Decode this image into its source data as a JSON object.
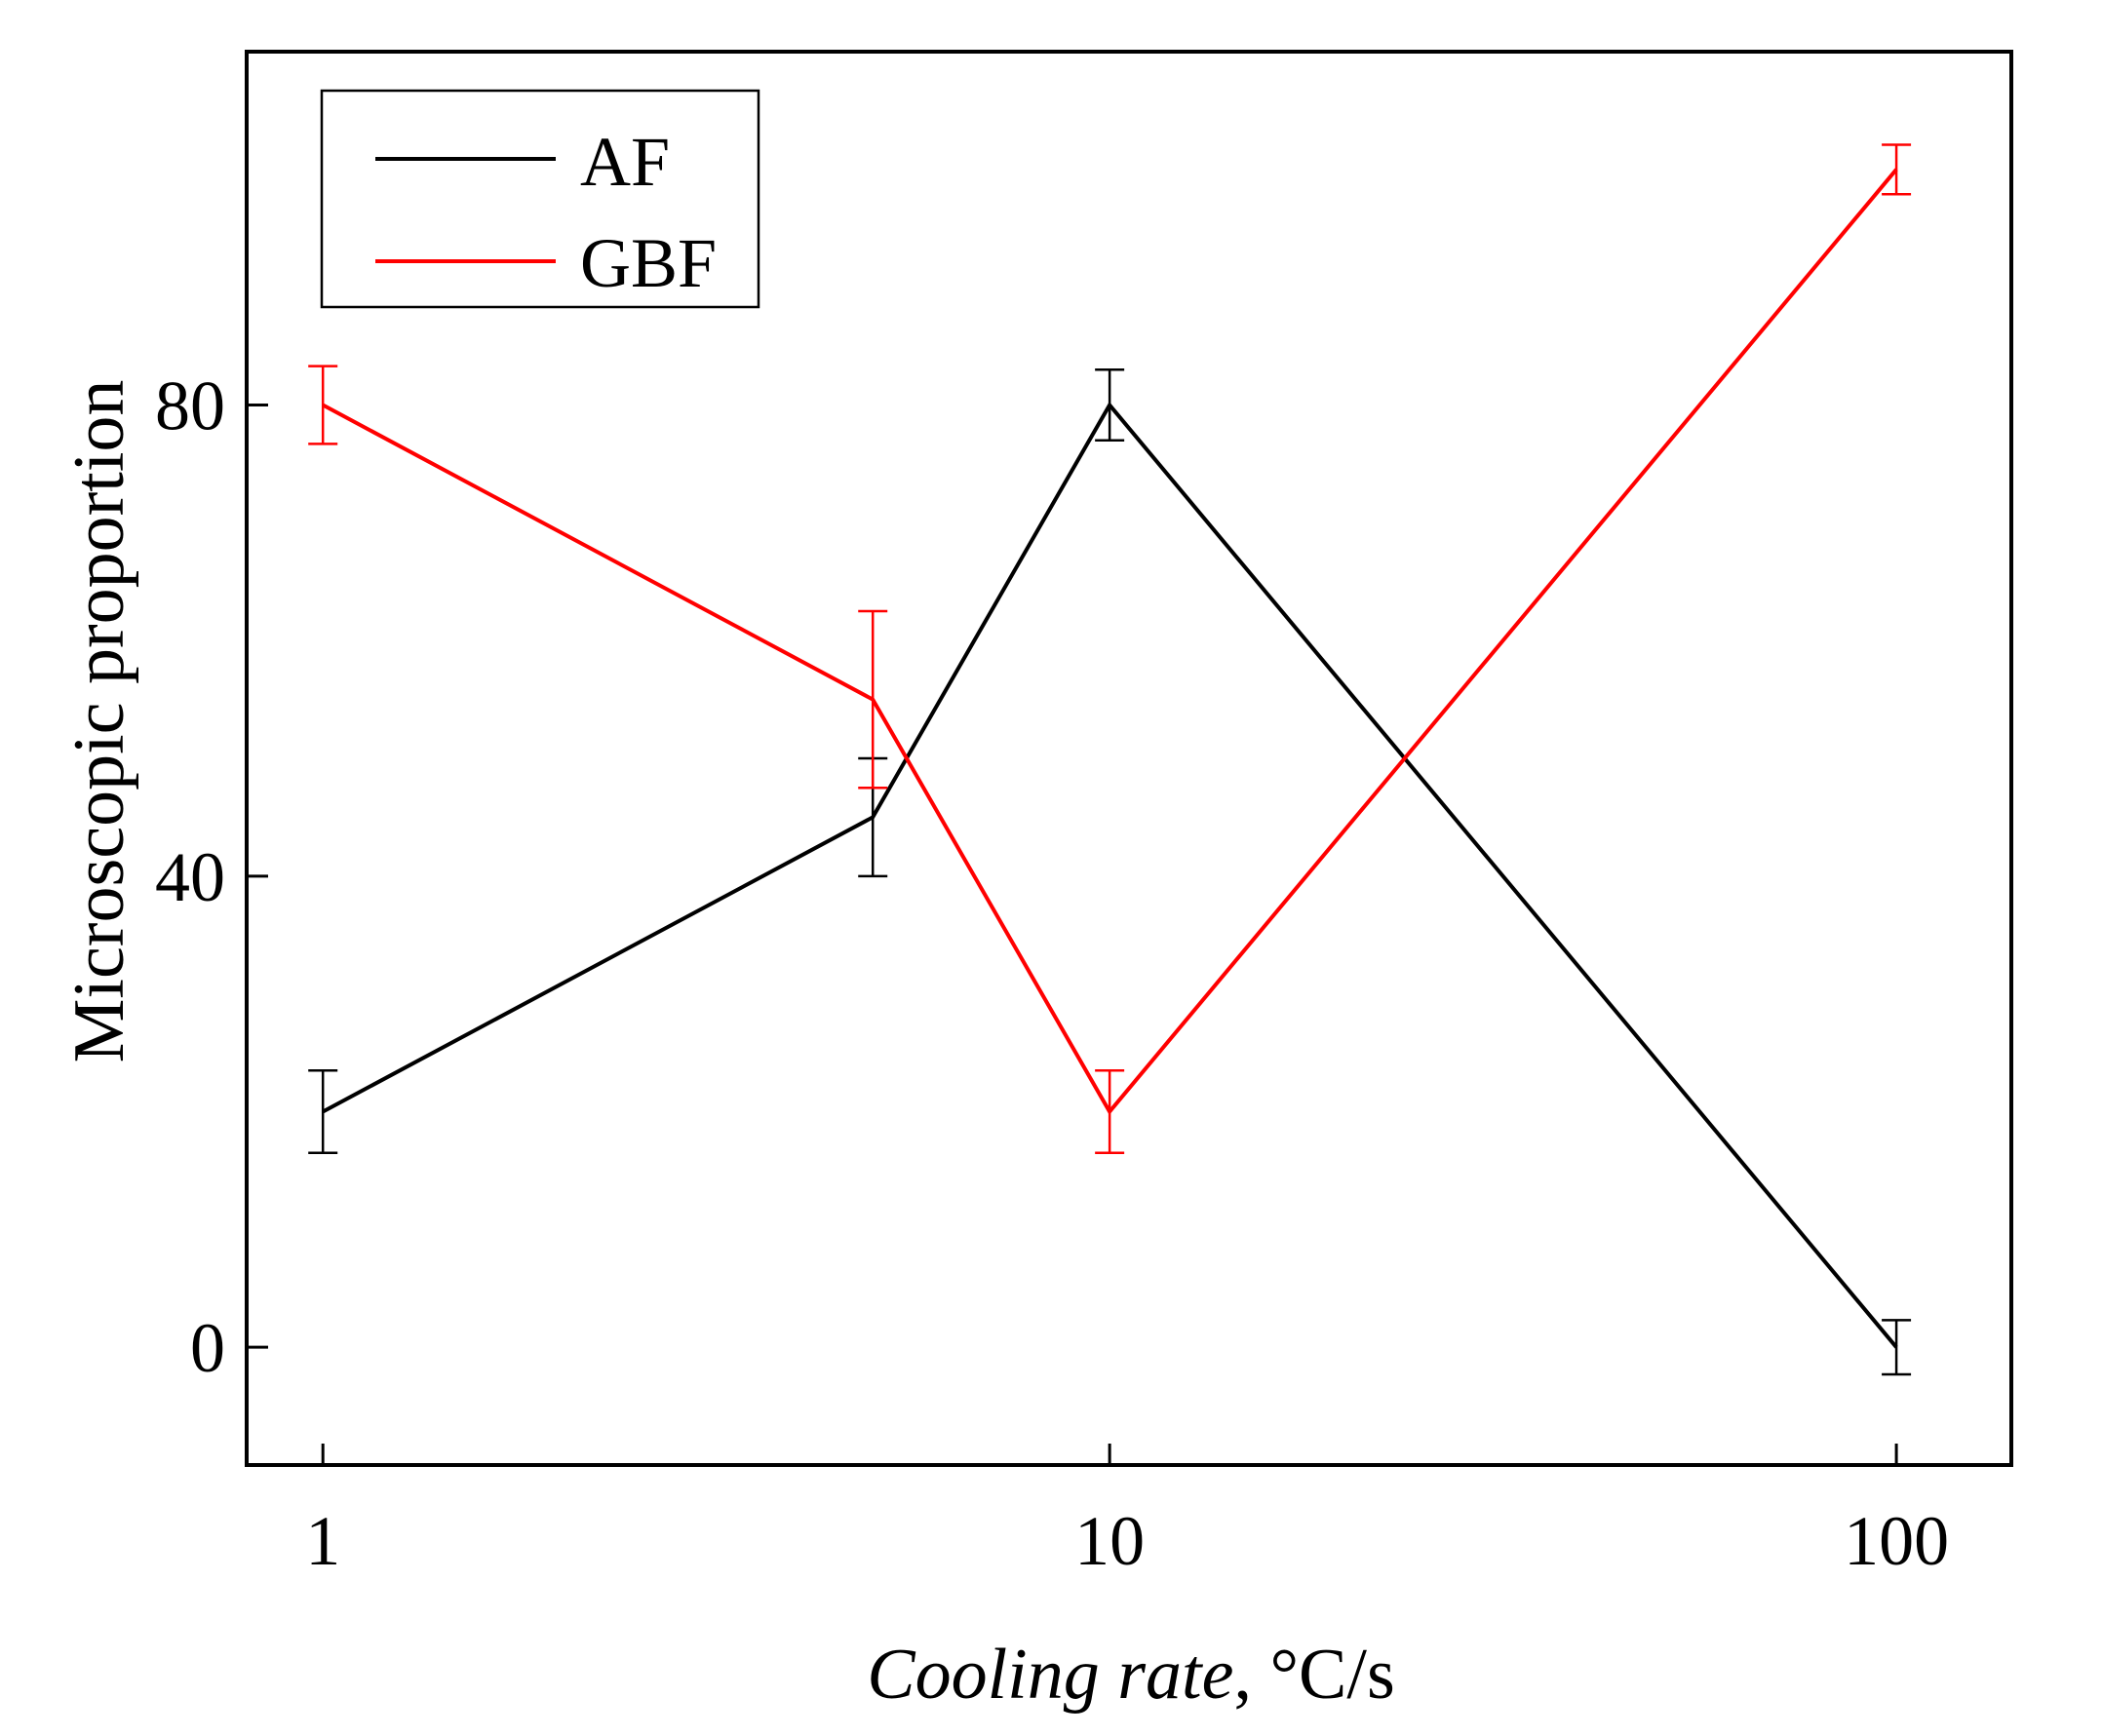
{
  "chart_data": {
    "type": "line",
    "title": "",
    "xlabel_italic": "Cooling rate",
    "xlabel_rest": ", °C/s",
    "ylabel": "Microscopic proportion",
    "x_scale": "log",
    "xlim": [
      0.8,
      140
    ],
    "ylim": [
      -10,
      110
    ],
    "x_ticks": [
      1,
      10,
      100
    ],
    "x_tick_labels": [
      "1",
      "10",
      "100"
    ],
    "y_ticks": [
      0,
      40,
      80
    ],
    "y_tick_labels": [
      "0",
      "40",
      "80"
    ],
    "x": [
      1,
      5,
      10,
      100
    ],
    "legend_position": "top-left",
    "series": [
      {
        "name": "AF",
        "color": "#000000",
        "values": [
          20,
          45,
          80,
          0
        ],
        "errors": [
          3.5,
          5,
          3,
          2.3
        ]
      },
      {
        "name": "GBF",
        "color": "#ff0000",
        "values": [
          80,
          55,
          20,
          100
        ],
        "errors": [
          3.3,
          7.5,
          3.5,
          2.1
        ]
      }
    ]
  }
}
